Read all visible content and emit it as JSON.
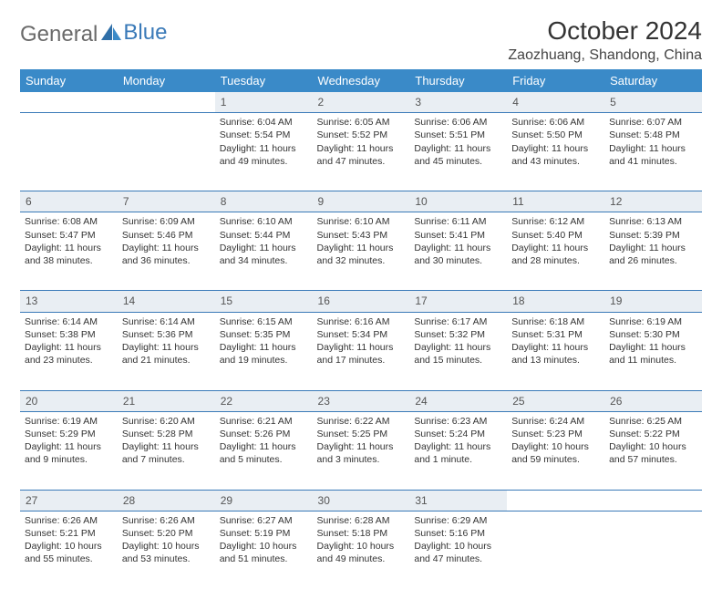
{
  "logo": {
    "text1": "General",
    "text2": "Blue"
  },
  "title": "October 2024",
  "location": "Zaozhuang, Shandong, China",
  "colors": {
    "header_bg": "#3a8ac8",
    "header_text": "#ffffff",
    "daynum_bg": "#e9eef3",
    "border": "#3a7ab8",
    "logo_accent": "#2f6fa8"
  },
  "weekdays": [
    "Sunday",
    "Monday",
    "Tuesday",
    "Wednesday",
    "Thursday",
    "Friday",
    "Saturday"
  ],
  "weeks": [
    [
      {
        "day": "",
        "lines": [
          "",
          "",
          "",
          ""
        ]
      },
      {
        "day": "",
        "lines": [
          "",
          "",
          "",
          ""
        ]
      },
      {
        "day": "1",
        "lines": [
          "Sunrise: 6:04 AM",
          "Sunset: 5:54 PM",
          "Daylight: 11 hours",
          "and 49 minutes."
        ]
      },
      {
        "day": "2",
        "lines": [
          "Sunrise: 6:05 AM",
          "Sunset: 5:52 PM",
          "Daylight: 11 hours",
          "and 47 minutes."
        ]
      },
      {
        "day": "3",
        "lines": [
          "Sunrise: 6:06 AM",
          "Sunset: 5:51 PM",
          "Daylight: 11 hours",
          "and 45 minutes."
        ]
      },
      {
        "day": "4",
        "lines": [
          "Sunrise: 6:06 AM",
          "Sunset: 5:50 PM",
          "Daylight: 11 hours",
          "and 43 minutes."
        ]
      },
      {
        "day": "5",
        "lines": [
          "Sunrise: 6:07 AM",
          "Sunset: 5:48 PM",
          "Daylight: 11 hours",
          "and 41 minutes."
        ]
      }
    ],
    [
      {
        "day": "6",
        "lines": [
          "Sunrise: 6:08 AM",
          "Sunset: 5:47 PM",
          "Daylight: 11 hours",
          "and 38 minutes."
        ]
      },
      {
        "day": "7",
        "lines": [
          "Sunrise: 6:09 AM",
          "Sunset: 5:46 PM",
          "Daylight: 11 hours",
          "and 36 minutes."
        ]
      },
      {
        "day": "8",
        "lines": [
          "Sunrise: 6:10 AM",
          "Sunset: 5:44 PM",
          "Daylight: 11 hours",
          "and 34 minutes."
        ]
      },
      {
        "day": "9",
        "lines": [
          "Sunrise: 6:10 AM",
          "Sunset: 5:43 PM",
          "Daylight: 11 hours",
          "and 32 minutes."
        ]
      },
      {
        "day": "10",
        "lines": [
          "Sunrise: 6:11 AM",
          "Sunset: 5:41 PM",
          "Daylight: 11 hours",
          "and 30 minutes."
        ]
      },
      {
        "day": "11",
        "lines": [
          "Sunrise: 6:12 AM",
          "Sunset: 5:40 PM",
          "Daylight: 11 hours",
          "and 28 minutes."
        ]
      },
      {
        "day": "12",
        "lines": [
          "Sunrise: 6:13 AM",
          "Sunset: 5:39 PM",
          "Daylight: 11 hours",
          "and 26 minutes."
        ]
      }
    ],
    [
      {
        "day": "13",
        "lines": [
          "Sunrise: 6:14 AM",
          "Sunset: 5:38 PM",
          "Daylight: 11 hours",
          "and 23 minutes."
        ]
      },
      {
        "day": "14",
        "lines": [
          "Sunrise: 6:14 AM",
          "Sunset: 5:36 PM",
          "Daylight: 11 hours",
          "and 21 minutes."
        ]
      },
      {
        "day": "15",
        "lines": [
          "Sunrise: 6:15 AM",
          "Sunset: 5:35 PM",
          "Daylight: 11 hours",
          "and 19 minutes."
        ]
      },
      {
        "day": "16",
        "lines": [
          "Sunrise: 6:16 AM",
          "Sunset: 5:34 PM",
          "Daylight: 11 hours",
          "and 17 minutes."
        ]
      },
      {
        "day": "17",
        "lines": [
          "Sunrise: 6:17 AM",
          "Sunset: 5:32 PM",
          "Daylight: 11 hours",
          "and 15 minutes."
        ]
      },
      {
        "day": "18",
        "lines": [
          "Sunrise: 6:18 AM",
          "Sunset: 5:31 PM",
          "Daylight: 11 hours",
          "and 13 minutes."
        ]
      },
      {
        "day": "19",
        "lines": [
          "Sunrise: 6:19 AM",
          "Sunset: 5:30 PM",
          "Daylight: 11 hours",
          "and 11 minutes."
        ]
      }
    ],
    [
      {
        "day": "20",
        "lines": [
          "Sunrise: 6:19 AM",
          "Sunset: 5:29 PM",
          "Daylight: 11 hours",
          "and 9 minutes."
        ]
      },
      {
        "day": "21",
        "lines": [
          "Sunrise: 6:20 AM",
          "Sunset: 5:28 PM",
          "Daylight: 11 hours",
          "and 7 minutes."
        ]
      },
      {
        "day": "22",
        "lines": [
          "Sunrise: 6:21 AM",
          "Sunset: 5:26 PM",
          "Daylight: 11 hours",
          "and 5 minutes."
        ]
      },
      {
        "day": "23",
        "lines": [
          "Sunrise: 6:22 AM",
          "Sunset: 5:25 PM",
          "Daylight: 11 hours",
          "and 3 minutes."
        ]
      },
      {
        "day": "24",
        "lines": [
          "Sunrise: 6:23 AM",
          "Sunset: 5:24 PM",
          "Daylight: 11 hours",
          "and 1 minute."
        ]
      },
      {
        "day": "25",
        "lines": [
          "Sunrise: 6:24 AM",
          "Sunset: 5:23 PM",
          "Daylight: 10 hours",
          "and 59 minutes."
        ]
      },
      {
        "day": "26",
        "lines": [
          "Sunrise: 6:25 AM",
          "Sunset: 5:22 PM",
          "Daylight: 10 hours",
          "and 57 minutes."
        ]
      }
    ],
    [
      {
        "day": "27",
        "lines": [
          "Sunrise: 6:26 AM",
          "Sunset: 5:21 PM",
          "Daylight: 10 hours",
          "and 55 minutes."
        ]
      },
      {
        "day": "28",
        "lines": [
          "Sunrise: 6:26 AM",
          "Sunset: 5:20 PM",
          "Daylight: 10 hours",
          "and 53 minutes."
        ]
      },
      {
        "day": "29",
        "lines": [
          "Sunrise: 6:27 AM",
          "Sunset: 5:19 PM",
          "Daylight: 10 hours",
          "and 51 minutes."
        ]
      },
      {
        "day": "30",
        "lines": [
          "Sunrise: 6:28 AM",
          "Sunset: 5:18 PM",
          "Daylight: 10 hours",
          "and 49 minutes."
        ]
      },
      {
        "day": "31",
        "lines": [
          "Sunrise: 6:29 AM",
          "Sunset: 5:16 PM",
          "Daylight: 10 hours",
          "and 47 minutes."
        ]
      },
      {
        "day": "",
        "lines": [
          "",
          "",
          "",
          ""
        ]
      },
      {
        "day": "",
        "lines": [
          "",
          "",
          "",
          ""
        ]
      }
    ]
  ]
}
